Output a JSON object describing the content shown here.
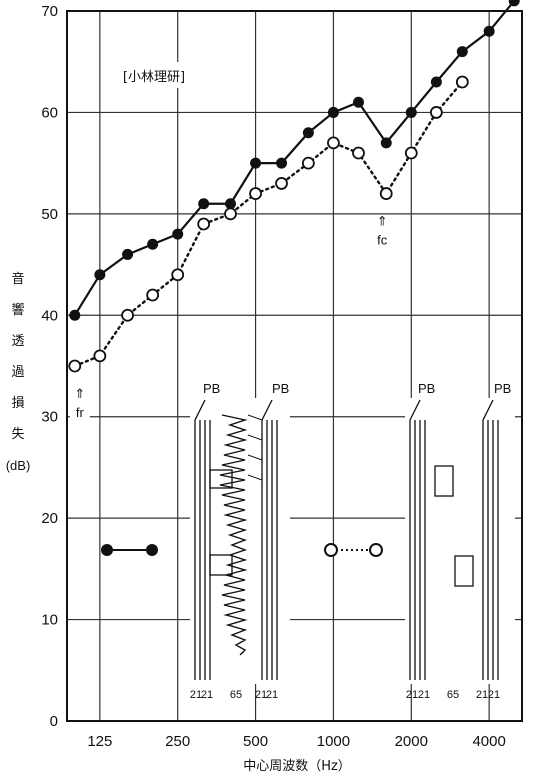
{
  "chart_data": {
    "type": "line",
    "title": "",
    "xlabel": "中心周波数（Hz）",
    "ylabel": "音響透過損失(dB)",
    "ylabel_chars": [
      "音",
      "響",
      "透",
      "過",
      "損",
      "失"
    ],
    "ylabel_unit": "(dB)",
    "annotation": "[小林理研]",
    "ylim": [
      0,
      70
    ],
    "yticks": [
      "0",
      "10",
      "20",
      "30",
      "40",
      "50",
      "60",
      "70"
    ],
    "x_tick_labels": [
      {
        "label": "125",
        "at": 125
      },
      {
        "label": "250",
        "at": 250
      },
      {
        "label": "500",
        "at": 500
      },
      {
        "label": "1000",
        "at": 1000
      },
      {
        "label": "2000",
        "at": 2000
      },
      {
        "label": "4000",
        "at": 4000
      }
    ],
    "x": [
      100,
      125,
      160,
      200,
      250,
      315,
      400,
      500,
      630,
      800,
      1000,
      1250,
      1600,
      2000,
      2500,
      3150,
      4000,
      5000
    ],
    "series": [
      {
        "marker": "filled",
        "line": "solid",
        "values": [
          40,
          44,
          46,
          47,
          48,
          51,
          51,
          55,
          55,
          58,
          60,
          61,
          57,
          60,
          63,
          66,
          68,
          71
        ]
      },
      {
        "marker": "open",
        "line": "dotted",
        "values": [
          35,
          36,
          40,
          42,
          44,
          49,
          50,
          52,
          53,
          55,
          57,
          56,
          52,
          56,
          60,
          63,
          null,
          null
        ]
      }
    ],
    "markers_annotations": [
      {
        "text": "fr",
        "at": 125,
        "y": 35
      },
      {
        "text": "fc",
        "at": 1600,
        "y": 52
      }
    ],
    "arrow_symbol": "⇑",
    "inset_labels": {
      "pb": "PB",
      "filled_dims": [
        "21",
        "21",
        "65",
        "21",
        "21"
      ],
      "open_dims": [
        "21",
        "21",
        "65",
        "21",
        "21"
      ]
    }
  }
}
